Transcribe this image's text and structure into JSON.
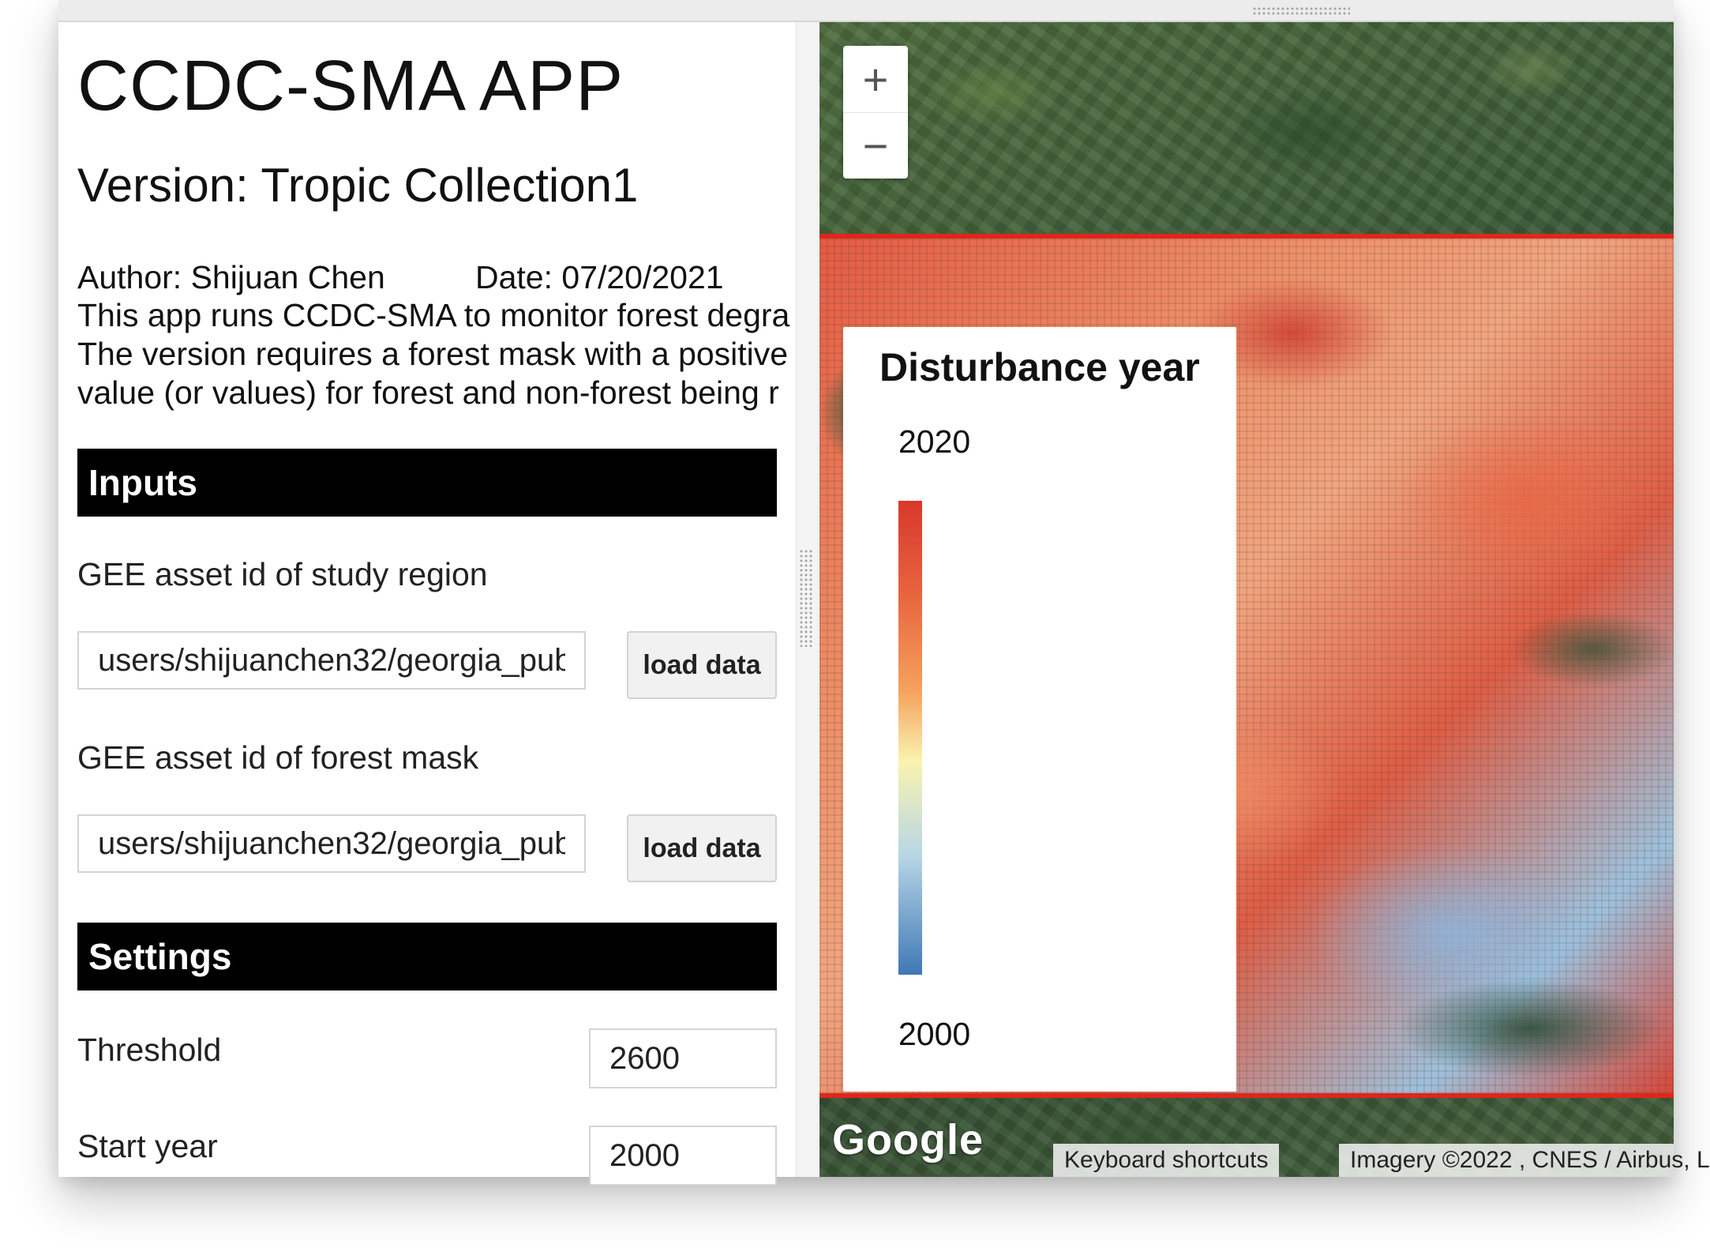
{
  "app": {
    "title": "CCDC-SMA APP",
    "version": "Version: Tropic Collection1",
    "author": "Author: Shijuan Chen",
    "date": "Date: 07/20/2021",
    "description_lines": [
      "This app runs CCDC-SMA to monitor forest degra",
      "The version requires a forest mask with a positive",
      "value (or values) for forest and non-forest being r"
    ]
  },
  "inputs": {
    "section_title": "Inputs",
    "study_region": {
      "label": "GEE asset id of study region",
      "value": "users/shijuanchen32/georgia_pub",
      "button": "load data"
    },
    "forest_mask": {
      "label": "GEE asset id of forest mask",
      "value": "users/shijuanchen32/georgia_pub",
      "button": "load data"
    }
  },
  "settings": {
    "section_title": "Settings",
    "threshold": {
      "label": "Threshold",
      "value": "2600"
    },
    "start_year": {
      "label": "Start year",
      "value": "2000"
    }
  },
  "map": {
    "zoom_in": "+",
    "zoom_out": "−",
    "legend": {
      "title": "Disturbance year",
      "max_label": "2020",
      "min_label": "2000",
      "gradient_colors": [
        "#d8382c",
        "#e8653f",
        "#f5a15d",
        "#faf3b0",
        "#b7d6e6",
        "#3f77b5"
      ]
    },
    "logo": "Google",
    "keyboard_shortcuts": "Keyboard shortcuts",
    "imagery_attribution": "Imagery ©2022 , CNES / Airbus, L"
  },
  "colors": {
    "section_bar": "#000000",
    "disturbance_boundary": "#e0261c"
  }
}
